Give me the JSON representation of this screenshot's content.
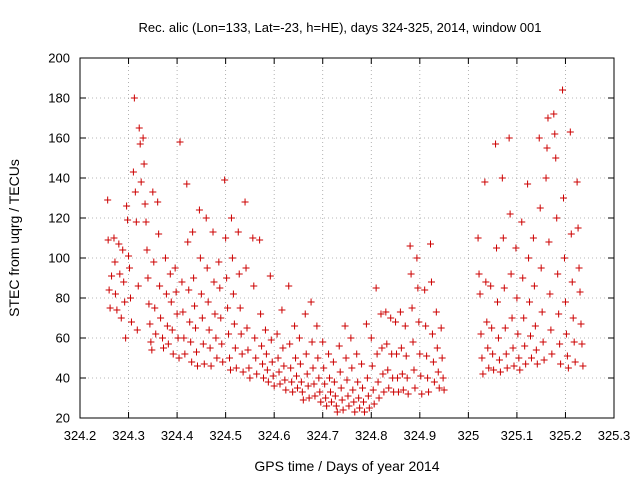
{
  "chart_data": {
    "type": "scatter",
    "title": "Rec. alic (Lon=133, Lat=-23, h=HE), days 324-325, 2014, window 001",
    "xlabel": "GPS time / Days of year 2014",
    "ylabel": "STEC from uqrg / TECUs",
    "xlim": [
      324.2,
      325.3
    ],
    "ylim": [
      20,
      200
    ],
    "xticks": [
      324.2,
      324.3,
      324.4,
      324.5,
      324.6,
      324.7,
      324.8,
      324.9,
      325,
      325.1,
      325.2,
      325.3
    ],
    "xtick_labels": [
      "324.2",
      "324.3",
      "324.4",
      "324.5",
      "324.6",
      "324.7",
      "324.8",
      "324.9",
      "325",
      "325.1",
      "325.2",
      "325.3"
    ],
    "yticks": [
      20,
      40,
      60,
      80,
      100,
      120,
      140,
      160,
      180,
      200
    ],
    "ytick_labels": [
      "20",
      "40",
      "60",
      "80",
      "100",
      "120",
      "140",
      "160",
      "180",
      "200"
    ],
    "grid": true,
    "marker": "+",
    "color": "#cc0000",
    "points": [
      [
        324.257,
        129
      ],
      [
        324.258,
        109
      ],
      [
        324.26,
        84
      ],
      [
        324.262,
        75
      ],
      [
        324.265,
        91
      ],
      [
        324.27,
        110
      ],
      [
        324.272,
        98
      ],
      [
        324.273,
        82
      ],
      [
        324.276,
        74
      ],
      [
        324.28,
        107
      ],
      [
        324.282,
        92
      ],
      [
        324.285,
        70
      ],
      [
        324.288,
        104
      ],
      [
        324.29,
        88
      ],
      [
        324.292,
        78
      ],
      [
        324.294,
        60
      ],
      [
        324.296,
        126
      ],
      [
        324.298,
        119
      ],
      [
        324.3,
        101
      ],
      [
        324.302,
        95
      ],
      [
        324.304,
        80
      ],
      [
        324.306,
        68
      ],
      [
        324.31,
        143
      ],
      [
        324.312,
        180
      ],
      [
        324.314,
        133
      ],
      [
        324.316,
        118
      ],
      [
        324.318,
        64
      ],
      [
        324.32,
        86
      ],
      [
        324.322,
        165
      ],
      [
        324.324,
        157
      ],
      [
        324.326,
        138
      ],
      [
        324.33,
        160
      ],
      [
        324.332,
        147
      ],
      [
        324.334,
        127
      ],
      [
        324.336,
        118
      ],
      [
        324.338,
        104
      ],
      [
        324.34,
        90
      ],
      [
        324.342,
        77
      ],
      [
        324.344,
        67
      ],
      [
        324.346,
        58
      ],
      [
        324.348,
        54
      ],
      [
        324.35,
        133
      ],
      [
        324.352,
        98
      ],
      [
        324.354,
        75
      ],
      [
        324.356,
        62
      ],
      [
        324.36,
        128
      ],
      [
        324.362,
        112
      ],
      [
        324.364,
        86
      ],
      [
        324.366,
        70
      ],
      [
        324.37,
        60
      ],
      [
        324.372,
        55
      ],
      [
        324.376,
        100
      ],
      [
        324.378,
        82
      ],
      [
        324.38,
        66
      ],
      [
        324.382,
        57
      ],
      [
        324.386,
        92
      ],
      [
        324.388,
        78
      ],
      [
        324.39,
        64
      ],
      [
        324.392,
        52
      ],
      [
        324.396,
        95
      ],
      [
        324.398,
        83
      ],
      [
        324.4,
        72
      ],
      [
        324.402,
        60
      ],
      [
        324.404,
        50
      ],
      [
        324.406,
        158
      ],
      [
        324.41,
        88
      ],
      [
        324.412,
        73
      ],
      [
        324.414,
        60
      ],
      [
        324.416,
        52
      ],
      [
        324.42,
        137
      ],
      [
        324.422,
        108
      ],
      [
        324.424,
        84
      ],
      [
        324.426,
        68
      ],
      [
        324.428,
        58
      ],
      [
        324.43,
        48
      ],
      [
        324.432,
        113
      ],
      [
        324.434,
        90
      ],
      [
        324.436,
        76
      ],
      [
        324.438,
        65
      ],
      [
        324.44,
        53
      ],
      [
        324.442,
        46
      ],
      [
        324.446,
        124
      ],
      [
        324.448,
        100
      ],
      [
        324.45,
        82
      ],
      [
        324.452,
        70
      ],
      [
        324.454,
        57
      ],
      [
        324.456,
        47
      ],
      [
        324.46,
        120
      ],
      [
        324.462,
        95
      ],
      [
        324.464,
        78
      ],
      [
        324.466,
        64
      ],
      [
        324.468,
        55
      ],
      [
        324.47,
        46
      ],
      [
        324.474,
        113
      ],
      [
        324.476,
        88
      ],
      [
        324.478,
        72
      ],
      [
        324.48,
        60
      ],
      [
        324.482,
        50
      ],
      [
        324.486,
        98
      ],
      [
        324.488,
        85
      ],
      [
        324.49,
        70
      ],
      [
        324.492,
        57
      ],
      [
        324.494,
        48
      ],
      [
        324.498,
        139
      ],
      [
        324.5,
        110
      ],
      [
        324.502,
        90
      ],
      [
        324.504,
        75
      ],
      [
        324.506,
        62
      ],
      [
        324.508,
        50
      ],
      [
        324.51,
        44
      ],
      [
        324.512,
        120
      ],
      [
        324.514,
        100
      ],
      [
        324.516,
        82
      ],
      [
        324.518,
        67
      ],
      [
        324.52,
        55
      ],
      [
        324.522,
        45
      ],
      [
        324.526,
        113
      ],
      [
        324.528,
        92
      ],
      [
        324.53,
        75
      ],
      [
        324.532,
        62
      ],
      [
        324.534,
        52
      ],
      [
        324.536,
        43
      ],
      [
        324.54,
        128
      ],
      [
        324.542,
        95
      ],
      [
        324.544,
        65
      ],
      [
        324.546,
        54
      ],
      [
        324.548,
        45
      ],
      [
        324.55,
        40
      ],
      [
        324.556,
        110
      ],
      [
        324.558,
        86
      ],
      [
        324.56,
        60
      ],
      [
        324.562,
        50
      ],
      [
        324.564,
        42
      ],
      [
        324.57,
        109
      ],
      [
        324.572,
        72
      ],
      [
        324.574,
        56
      ],
      [
        324.576,
        47
      ],
      [
        324.578,
        40
      ],
      [
        324.582,
        64
      ],
      [
        324.584,
        52
      ],
      [
        324.586,
        44
      ],
      [
        324.588,
        38
      ],
      [
        324.592,
        91
      ],
      [
        324.594,
        59
      ],
      [
        324.596,
        48
      ],
      [
        324.598,
        41
      ],
      [
        324.6,
        36
      ],
      [
        324.606,
        62
      ],
      [
        324.608,
        50
      ],
      [
        324.61,
        43
      ],
      [
        324.612,
        37
      ],
      [
        324.616,
        74
      ],
      [
        324.618,
        55
      ],
      [
        324.62,
        46
      ],
      [
        324.622,
        39
      ],
      [
        324.624,
        34
      ],
      [
        324.63,
        86
      ],
      [
        324.632,
        57
      ],
      [
        324.634,
        45
      ],
      [
        324.636,
        38
      ],
      [
        324.638,
        33
      ],
      [
        324.642,
        66
      ],
      [
        324.644,
        50
      ],
      [
        324.646,
        41
      ],
      [
        324.648,
        35
      ],
      [
        324.652,
        60
      ],
      [
        324.654,
        47
      ],
      [
        324.656,
        38
      ],
      [
        324.658,
        33
      ],
      [
        324.66,
        29
      ],
      [
        324.664,
        72
      ],
      [
        324.666,
        52
      ],
      [
        324.668,
        42
      ],
      [
        324.67,
        36
      ],
      [
        324.672,
        30
      ],
      [
        324.676,
        78
      ],
      [
        324.678,
        58
      ],
      [
        324.68,
        45
      ],
      [
        324.682,
        37
      ],
      [
        324.684,
        31
      ],
      [
        324.688,
        66
      ],
      [
        324.69,
        50
      ],
      [
        324.692,
        40
      ],
      [
        324.694,
        33
      ],
      [
        324.696,
        28
      ],
      [
        324.7,
        58
      ],
      [
        324.702,
        45
      ],
      [
        324.704,
        37
      ],
      [
        324.706,
        30
      ],
      [
        324.708,
        26
      ],
      [
        324.712,
        52
      ],
      [
        324.714,
        40
      ],
      [
        324.716,
        33
      ],
      [
        324.718,
        28
      ],
      [
        324.722,
        48
      ],
      [
        324.724,
        38
      ],
      [
        324.726,
        31
      ],
      [
        324.728,
        26
      ],
      [
        324.73,
        23
      ],
      [
        324.734,
        56
      ],
      [
        324.736,
        43
      ],
      [
        324.738,
        35
      ],
      [
        324.74,
        29
      ],
      [
        324.742,
        24
      ],
      [
        324.746,
        66
      ],
      [
        324.748,
        50
      ],
      [
        324.75,
        39
      ],
      [
        324.752,
        31
      ],
      [
        324.754,
        26
      ],
      [
        324.758,
        60
      ],
      [
        324.76,
        45
      ],
      [
        324.762,
        34
      ],
      [
        324.764,
        28
      ],
      [
        324.766,
        23
      ],
      [
        324.77,
        52
      ],
      [
        324.772,
        38
      ],
      [
        324.774,
        30
      ],
      [
        324.776,
        25
      ],
      [
        324.78,
        47
      ],
      [
        324.782,
        35
      ],
      [
        324.784,
        28
      ],
      [
        324.786,
        23
      ],
      [
        324.79,
        67
      ],
      [
        324.792,
        40
      ],
      [
        324.794,
        31
      ],
      [
        324.796,
        25
      ],
      [
        324.8,
        60
      ],
      [
        324.802,
        46
      ],
      [
        324.804,
        34
      ],
      [
        324.806,
        27
      ],
      [
        324.81,
        85
      ],
      [
        324.812,
        52
      ],
      [
        324.814,
        38
      ],
      [
        324.816,
        30
      ],
      [
        324.82,
        72
      ],
      [
        324.822,
        55
      ],
      [
        324.824,
        42
      ],
      [
        324.826,
        33
      ],
      [
        324.83,
        73
      ],
      [
        324.832,
        57
      ],
      [
        324.834,
        44
      ],
      [
        324.836,
        35
      ],
      [
        324.84,
        70
      ],
      [
        324.842,
        52
      ],
      [
        324.844,
        40
      ],
      [
        324.846,
        33
      ],
      [
        324.85,
        68
      ],
      [
        324.852,
        52
      ],
      [
        324.854,
        40
      ],
      [
        324.856,
        33
      ],
      [
        324.86,
        73
      ],
      [
        324.862,
        55
      ],
      [
        324.864,
        42
      ],
      [
        324.866,
        34
      ],
      [
        324.87,
        66
      ],
      [
        324.872,
        51
      ],
      [
        324.874,
        40
      ],
      [
        324.876,
        32
      ],
      [
        324.88,
        106
      ],
      [
        324.882,
        92
      ],
      [
        324.884,
        75
      ],
      [
        324.886,
        58
      ],
      [
        324.888,
        44
      ],
      [
        324.89,
        35
      ],
      [
        324.894,
        100
      ],
      [
        324.896,
        85
      ],
      [
        324.898,
        68
      ],
      [
        324.9,
        52
      ],
      [
        324.902,
        41
      ],
      [
        324.904,
        32
      ],
      [
        324.91,
        84
      ],
      [
        324.912,
        66
      ],
      [
        324.914,
        51
      ],
      [
        324.916,
        40
      ],
      [
        324.918,
        33
      ],
      [
        324.922,
        107
      ],
      [
        324.924,
        88
      ],
      [
        324.926,
        62
      ],
      [
        324.928,
        48
      ],
      [
        324.93,
        38
      ],
      [
        324.934,
        73
      ],
      [
        324.936,
        55
      ],
      [
        324.938,
        43
      ],
      [
        324.94,
        35
      ],
      [
        324.944,
        65
      ],
      [
        324.946,
        50
      ],
      [
        324.948,
        40
      ],
      [
        324.95,
        34
      ],
      [
        325.02,
        110
      ],
      [
        325.022,
        92
      ],
      [
        325.024,
        82
      ],
      [
        325.026,
        62
      ],
      [
        325.028,
        50
      ],
      [
        325.03,
        42
      ],
      [
        325.034,
        138
      ],
      [
        325.036,
        88
      ],
      [
        325.038,
        68
      ],
      [
        325.04,
        55
      ],
      [
        325.042,
        45
      ],
      [
        325.046,
        86
      ],
      [
        325.048,
        65
      ],
      [
        325.05,
        52
      ],
      [
        325.052,
        44
      ],
      [
        325.056,
        157
      ],
      [
        325.058,
        105
      ],
      [
        325.06,
        78
      ],
      [
        325.062,
        60
      ],
      [
        325.064,
        49
      ],
      [
        325.066,
        43
      ],
      [
        325.07,
        140
      ],
      [
        325.072,
        110
      ],
      [
        325.074,
        85
      ],
      [
        325.076,
        65
      ],
      [
        325.078,
        52
      ],
      [
        325.08,
        45
      ],
      [
        325.084,
        160
      ],
      [
        325.086,
        122
      ],
      [
        325.088,
        92
      ],
      [
        325.09,
        70
      ],
      [
        325.092,
        55
      ],
      [
        325.094,
        46
      ],
      [
        325.098,
        105
      ],
      [
        325.1,
        80
      ],
      [
        325.102,
        62
      ],
      [
        325.104,
        50
      ],
      [
        325.106,
        44
      ],
      [
        325.11,
        118
      ],
      [
        325.112,
        90
      ],
      [
        325.114,
        70
      ],
      [
        325.116,
        56
      ],
      [
        325.118,
        47
      ],
      [
        325.122,
        137
      ],
      [
        325.124,
        100
      ],
      [
        325.126,
        78
      ],
      [
        325.128,
        61
      ],
      [
        325.13,
        50
      ],
      [
        325.134,
        110
      ],
      [
        325.136,
        86
      ],
      [
        325.138,
        66
      ],
      [
        325.14,
        54
      ],
      [
        325.142,
        47
      ],
      [
        325.146,
        160
      ],
      [
        325.148,
        125
      ],
      [
        325.15,
        95
      ],
      [
        325.152,
        73
      ],
      [
        325.154,
        58
      ],
      [
        325.156,
        49
      ],
      [
        325.16,
        140
      ],
      [
        325.162,
        155
      ],
      [
        325.164,
        170
      ],
      [
        325.166,
        108
      ],
      [
        325.168,
        82
      ],
      [
        325.17,
        64
      ],
      [
        325.172,
        52
      ],
      [
        325.176,
        172
      ],
      [
        325.178,
        162
      ],
      [
        325.18,
        150
      ],
      [
        325.182,
        120
      ],
      [
        325.184,
        92
      ],
      [
        325.186,
        72
      ],
      [
        325.188,
        57
      ],
      [
        325.19,
        47
      ],
      [
        325.194,
        184
      ],
      [
        325.196,
        130
      ],
      [
        325.198,
        100
      ],
      [
        325.2,
        78
      ],
      [
        325.202,
        62
      ],
      [
        325.204,
        51
      ],
      [
        325.206,
        45
      ],
      [
        325.21,
        163
      ],
      [
        325.212,
        112
      ],
      [
        325.214,
        88
      ],
      [
        325.216,
        70
      ],
      [
        325.218,
        58
      ],
      [
        325.22,
        48
      ],
      [
        325.224,
        138
      ],
      [
        325.226,
        115
      ],
      [
        325.228,
        95
      ],
      [
        325.23,
        83
      ],
      [
        325.232,
        67
      ],
      [
        325.234,
        57
      ],
      [
        325.236,
        46
      ]
    ]
  }
}
